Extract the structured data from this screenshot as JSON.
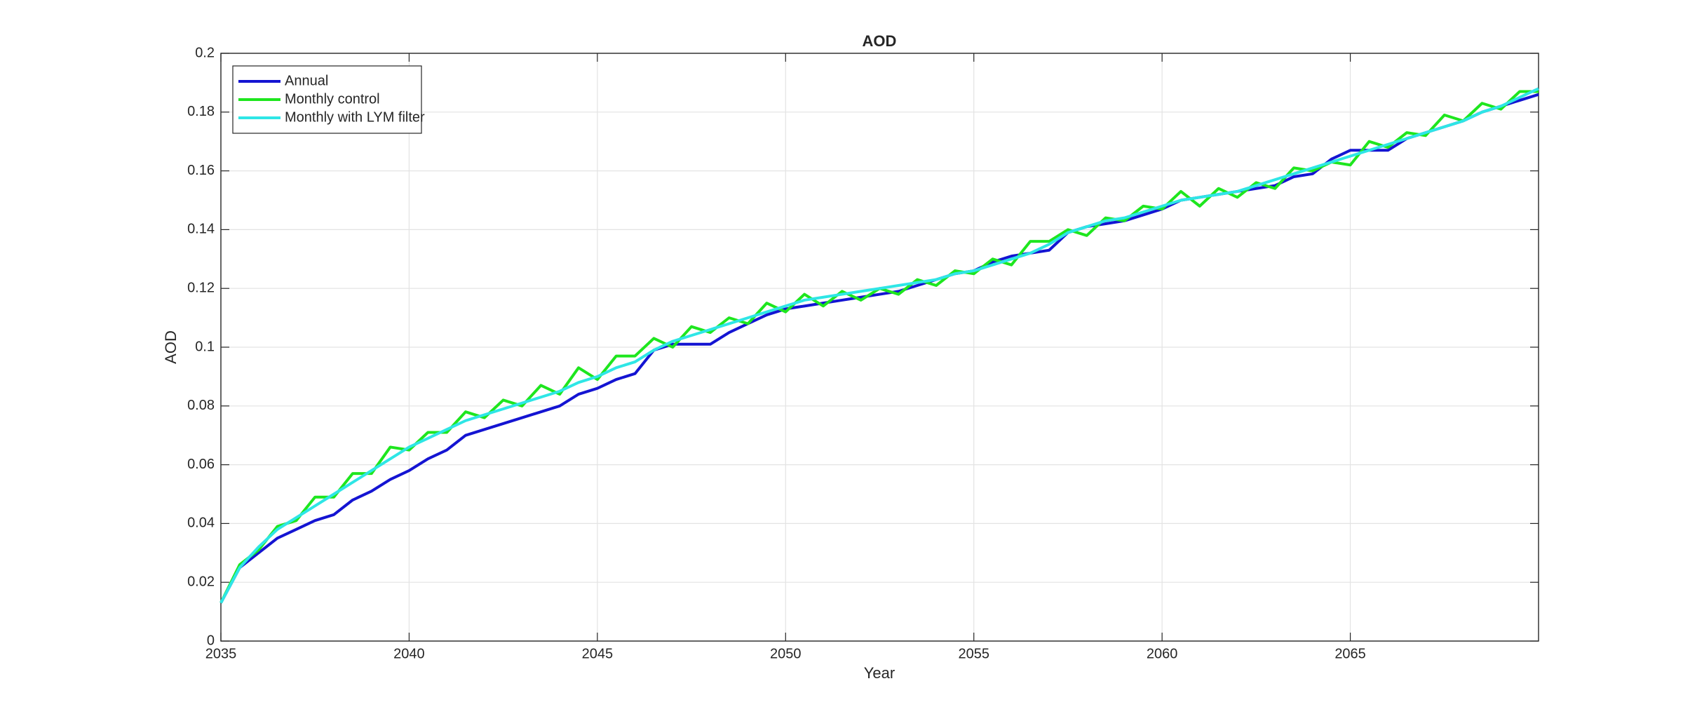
{
  "chart_data": {
    "type": "line",
    "title": "AOD",
    "x_label": "Year",
    "y_label": "AOD",
    "x": [
      2035,
      2035.5,
      2036,
      2036.5,
      2037,
      2037.5,
      2038,
      2038.5,
      2039,
      2039.5,
      2040,
      2040.5,
      2041,
      2041.5,
      2042,
      2042.5,
      2043,
      2043.5,
      2044,
      2044.5,
      2045,
      2045.5,
      2046,
      2046.5,
      2047,
      2047.5,
      2048,
      2048.5,
      2049,
      2049.5,
      2050,
      2050.5,
      2051,
      2051.5,
      2052,
      2052.5,
      2053,
      2053.5,
      2054,
      2054.5,
      2055,
      2055.5,
      2056,
      2056.5,
      2057,
      2057.5,
      2058,
      2058.5,
      2059,
      2059.5,
      2060,
      2060.5,
      2061,
      2061.5,
      2062,
      2062.5,
      2063,
      2063.5,
      2064,
      2064.5,
      2065,
      2065.5,
      2066,
      2066.5,
      2067,
      2067.5,
      2068,
      2068.5,
      2069,
      2069.5,
      2070
    ],
    "series": [
      {
        "name": "Annual",
        "color": "#1414d2",
        "values": [
          0.013,
          0.025,
          0.03,
          0.035,
          0.038,
          0.041,
          0.043,
          0.048,
          0.051,
          0.055,
          0.058,
          0.062,
          0.065,
          0.07,
          0.072,
          0.074,
          0.076,
          0.078,
          0.08,
          0.084,
          0.086,
          0.089,
          0.091,
          0.099,
          0.101,
          0.101,
          0.101,
          0.105,
          0.108,
          0.111,
          0.113,
          0.114,
          0.115,
          0.116,
          0.117,
          0.118,
          0.119,
          0.121,
          0.123,
          0.125,
          0.126,
          0.129,
          0.131,
          0.132,
          0.133,
          0.139,
          0.141,
          0.142,
          0.143,
          0.145,
          0.147,
          0.15,
          0.151,
          0.152,
          0.153,
          0.154,
          0.155,
          0.158,
          0.159,
          0.164,
          0.167,
          0.167,
          0.167,
          0.171,
          0.173,
          0.175,
          0.177,
          0.18,
          0.182,
          0.184,
          0.186
        ]
      },
      {
        "name": "Monthly control",
        "color": "#1ee61e",
        "values": [
          0.013,
          0.026,
          0.031,
          0.039,
          0.041,
          0.049,
          0.049,
          0.057,
          0.057,
          0.066,
          0.065,
          0.071,
          0.071,
          0.078,
          0.076,
          0.082,
          0.08,
          0.087,
          0.084,
          0.093,
          0.089,
          0.097,
          0.097,
          0.103,
          0.1,
          0.107,
          0.105,
          0.11,
          0.108,
          0.115,
          0.112,
          0.118,
          0.114,
          0.119,
          0.116,
          0.12,
          0.118,
          0.123,
          0.121,
          0.126,
          0.125,
          0.13,
          0.128,
          0.136,
          0.136,
          0.14,
          0.138,
          0.144,
          0.143,
          0.148,
          0.147,
          0.153,
          0.148,
          0.154,
          0.151,
          0.156,
          0.154,
          0.161,
          0.16,
          0.163,
          0.162,
          0.17,
          0.168,
          0.173,
          0.172,
          0.179,
          0.177,
          0.183,
          0.181,
          0.187,
          0.187
        ]
      },
      {
        "name": "Monthly with LYM filter",
        "color": "#2ee6e6",
        "values": [
          0.013,
          0.025,
          0.032,
          0.038,
          0.042,
          0.046,
          0.05,
          0.054,
          0.058,
          0.062,
          0.066,
          0.069,
          0.072,
          0.075,
          0.077,
          0.079,
          0.081,
          0.083,
          0.085,
          0.088,
          0.09,
          0.093,
          0.095,
          0.099,
          0.102,
          0.104,
          0.106,
          0.108,
          0.11,
          0.112,
          0.114,
          0.116,
          0.117,
          0.118,
          0.119,
          0.12,
          0.121,
          0.122,
          0.123,
          0.125,
          0.126,
          0.128,
          0.13,
          0.132,
          0.135,
          0.139,
          0.141,
          0.143,
          0.144,
          0.146,
          0.148,
          0.15,
          0.151,
          0.152,
          0.153,
          0.155,
          0.157,
          0.159,
          0.161,
          0.163,
          0.165,
          0.167,
          0.169,
          0.171,
          0.173,
          0.175,
          0.177,
          0.18,
          0.182,
          0.185,
          0.188
        ]
      }
    ],
    "xlim": [
      2035,
      2070
    ],
    "xticks": [
      2035,
      2040,
      2045,
      2050,
      2055,
      2060,
      2065
    ],
    "ylim": [
      0,
      0.2
    ],
    "yticks": [
      0,
      0.02,
      0.04,
      0.06,
      0.08,
      0.1,
      0.12,
      0.14,
      0.16,
      0.18,
      0.2
    ],
    "grid": true,
    "legend": "upper left"
  }
}
